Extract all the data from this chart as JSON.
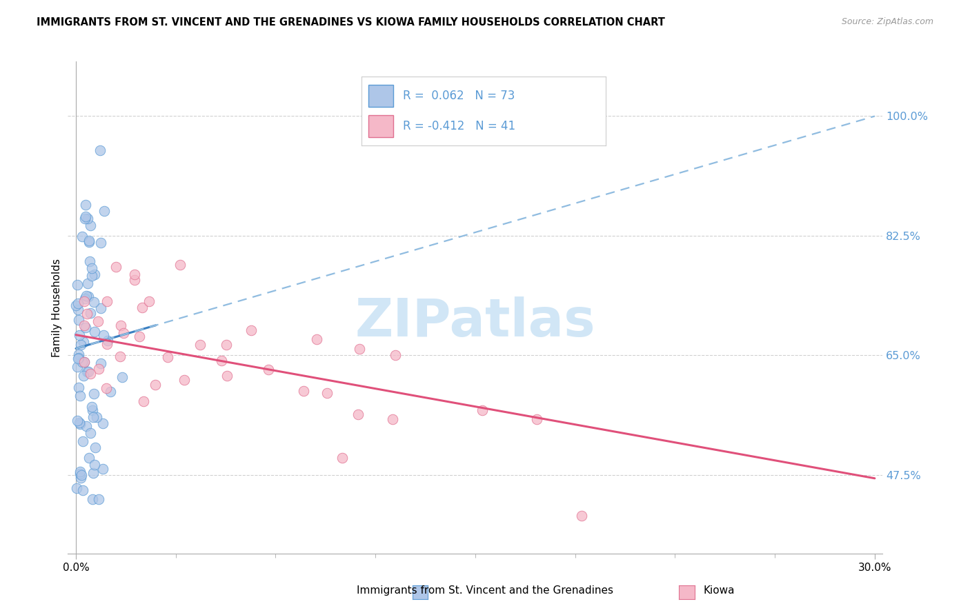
{
  "title": "IMMIGRANTS FROM ST. VINCENT AND THE GRENADINES VS KIOWA FAMILY HOUSEHOLDS CORRELATION CHART",
  "source": "Source: ZipAtlas.com",
  "ylabel": "Family Households",
  "blue_R": "0.062",
  "blue_N": "73",
  "pink_R": "-0.412",
  "pink_N": "41",
  "blue_fill": "#aec6e8",
  "blue_edge": "#5b9bd5",
  "pink_fill": "#f5b8c8",
  "pink_edge": "#e07090",
  "blue_trend_solid": "#3a7fc1",
  "blue_trend_dash": "#90bce0",
  "pink_trend": "#e0507a",
  "grid_color": "#d0d0d0",
  "ytick_color": "#5b9bd5",
  "watermark_color": "#cce4f5",
  "legend_text_color": "#5b9bd5",
  "bottom_label_blue": "Immigrants from St. Vincent and the Grenadines",
  "bottom_label_pink": "Kiowa",
  "xlim_max": 30.0,
  "ylim_min": 36.0,
  "ylim_max": 108.0,
  "ytick_vals": [
    47.5,
    65.0,
    82.5,
    100.0
  ],
  "ytick_labels": [
    "47.5%",
    "65.0%",
    "82.5%",
    "100.0%"
  ]
}
